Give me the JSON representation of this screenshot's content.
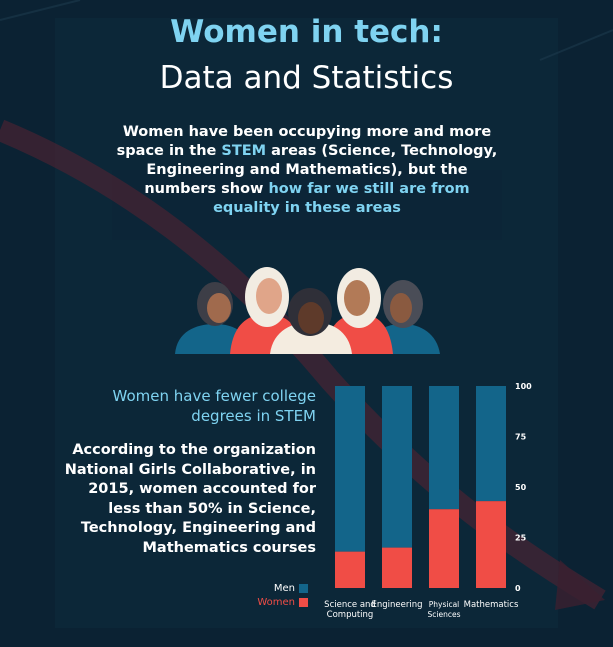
{
  "header": {
    "title_accent": "Women in tech:",
    "title_main": "Data and Statistics"
  },
  "intro": {
    "part1": "Women have been occupying more and more space in the ",
    "highlight1": "STEM",
    "part2": " areas (Science, Technology, Engineering and Mathematics), but the numbers show ",
    "highlight2": "how far we still are from equality in these areas"
  },
  "illustration": {
    "name": "group-of-women-illustration"
  },
  "section": {
    "heading": "Women have fewer college degrees in STEM",
    "body": "According to the organization National Girls Collaborative, in 2015, women accounted for less than 50% in Science, Technology, Engineering and Mathematics courses"
  },
  "colors": {
    "background": "#0b2233",
    "accent_text": "#7fd3f1",
    "men": "#13658a",
    "women": "#f04d46"
  },
  "legend": {
    "items": [
      {
        "label": "Men",
        "color": "#13658a"
      },
      {
        "label": "Women",
        "color": "#f04d46"
      }
    ]
  },
  "chart_data": {
    "type": "bar",
    "stacked": true,
    "categories": [
      [
        "Science and",
        "Computing"
      ],
      [
        "Engineering"
      ],
      [
        "Physical",
        "Sciences"
      ],
      [
        "Mathematics"
      ]
    ],
    "series": [
      {
        "name": "Women",
        "values": [
          18,
          20,
          39,
          43
        ],
        "color": "#f04d46"
      },
      {
        "name": "Men",
        "values": [
          82,
          80,
          61,
          57
        ],
        "color": "#13658a"
      }
    ],
    "ylim": [
      0,
      100
    ],
    "yticks": [
      0,
      25,
      50,
      75,
      100
    ],
    "y_axis_position": "right",
    "grid": false,
    "legend_placement": "bottom-left"
  }
}
